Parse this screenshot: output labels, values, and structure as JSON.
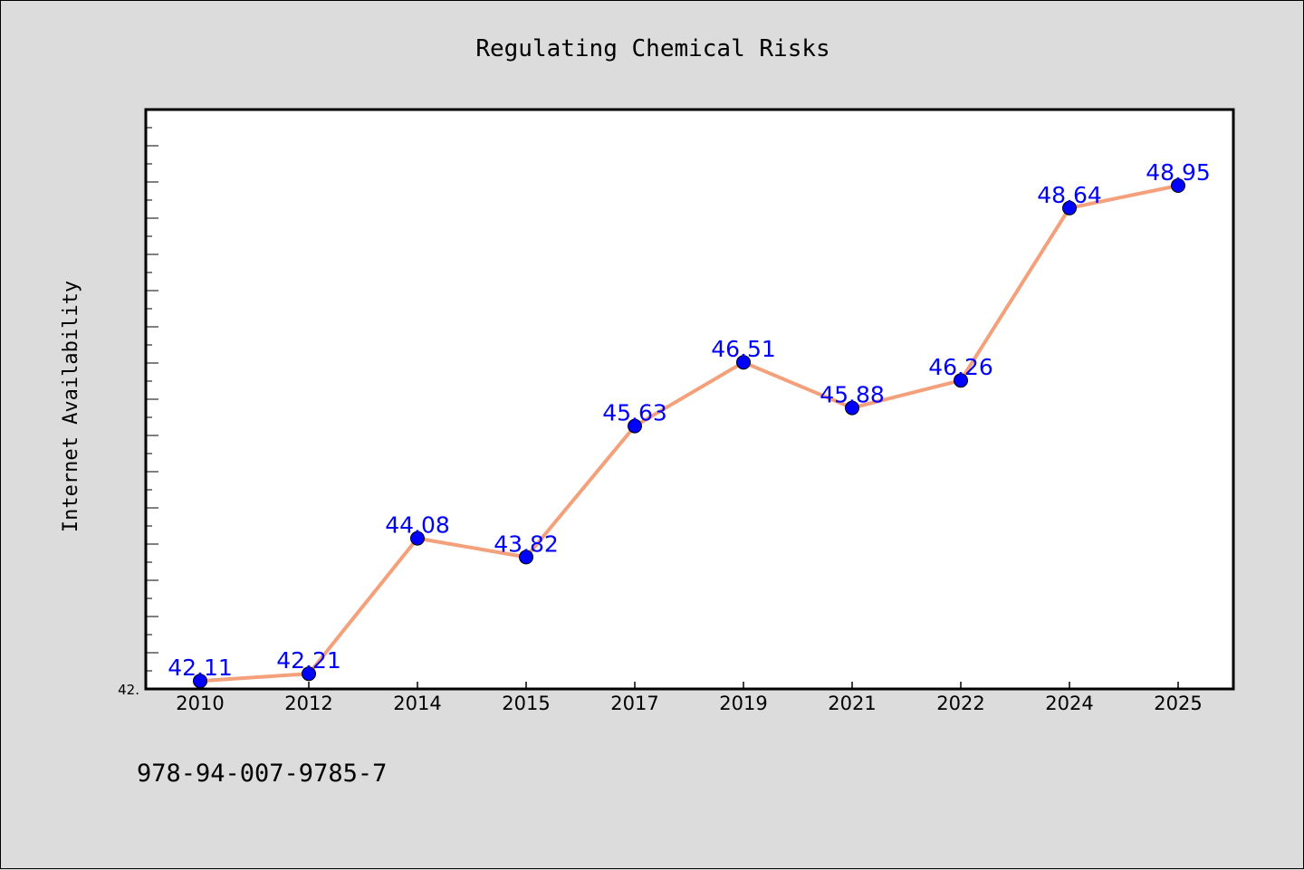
{
  "chart_data": {
    "type": "line",
    "title": "Regulating Chemical Risks",
    "xlabel": "",
    "ylabel": "Internet Availability",
    "categories": [
      "2010",
      "2012",
      "2014",
      "2015",
      "2017",
      "2019",
      "2021",
      "2022",
      "2024",
      "2025"
    ],
    "series": [
      {
        "values": [
          42.11,
          42.21,
          44.08,
          43.82,
          45.63,
          46.51,
          45.88,
          46.26,
          48.64,
          48.95
        ],
        "data_labels": [
          "42.11",
          "42.21",
          "44.08",
          "43.82",
          "45.63",
          "46.51",
          "45.88",
          "46.26",
          "48.64",
          "48.95"
        ],
        "line_color": "#f4a07a",
        "marker_color": "#0000ff"
      }
    ],
    "y_tick_labels": [
      "42."
    ],
    "ylim": [
      42.0,
      50.0
    ],
    "grid": false,
    "legend": "none"
  },
  "footer_text": "978-94-007-9785-7",
  "colors": {
    "background": "#dcdcdc",
    "plot_background": "#ffffff",
    "line": "#f4a07a",
    "marker": "#0000ff",
    "data_label": "#0000ff"
  }
}
